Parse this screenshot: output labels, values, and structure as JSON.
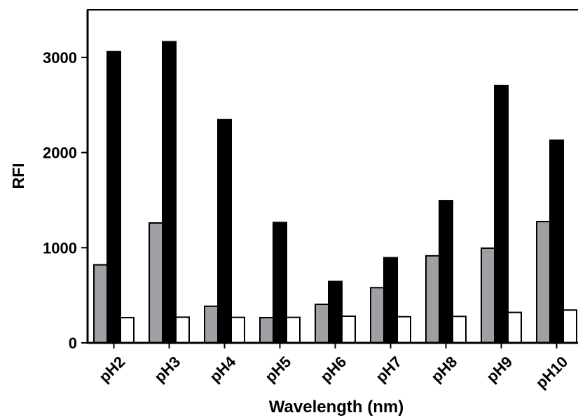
{
  "chart_data": {
    "type": "bar",
    "title": "",
    "xlabel": "Wavelength (nm)",
    "ylabel": "RFI",
    "ylim": [
      0,
      3500
    ],
    "yticks": [
      0,
      1000,
      2000,
      3000
    ],
    "ytick_labels": [
      "0",
      "1000",
      "2000",
      "3000"
    ],
    "grid": false,
    "legend": "none",
    "categories": [
      "pH2",
      "pH3",
      "pH4",
      "pH5",
      "pH6",
      "pH7",
      "pH8",
      "pH9",
      "pH10"
    ],
    "series": [
      {
        "color": "#a0a0a4",
        "values": [
          820,
          1260,
          385,
          265,
          405,
          580,
          915,
          995,
          1275
        ]
      },
      {
        "color": "#000000",
        "values": [
          3060,
          3165,
          2345,
          1265,
          645,
          895,
          1495,
          2705,
          2130
        ]
      },
      {
        "color": "#ffffff",
        "values": [
          265,
          270,
          268,
          268,
          280,
          275,
          278,
          320,
          345
        ]
      }
    ]
  }
}
